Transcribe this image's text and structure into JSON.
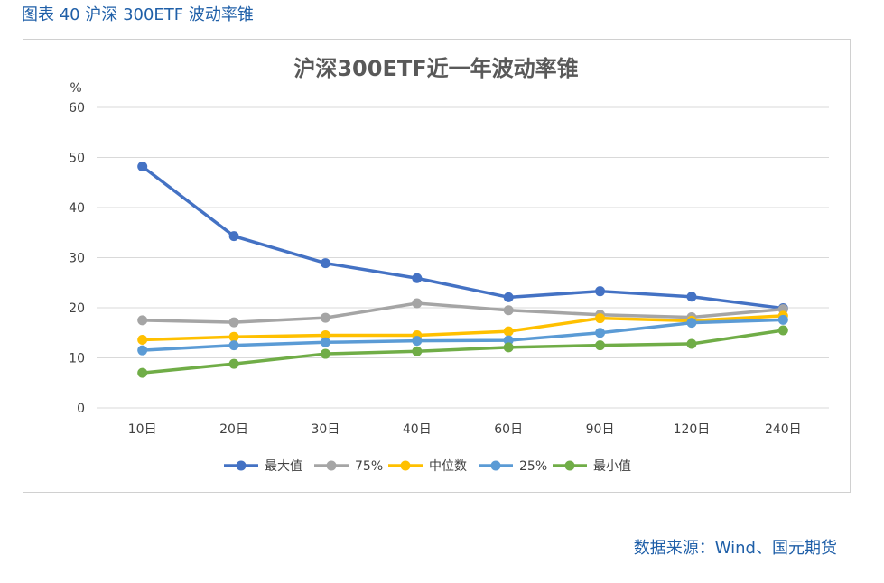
{
  "figure_title": "图表 40 沪深 300ETF 波动率锥",
  "source": "数据来源：Wind、国元期货",
  "chart_data": {
    "type": "line",
    "title": "沪深300ETF近一年波动率锥",
    "ylabel": "%",
    "xlabel": "",
    "categories": [
      "10日",
      "20日",
      "30日",
      "40日",
      "60日",
      "90日",
      "120日",
      "240日"
    ],
    "ylim": [
      0,
      60
    ],
    "yticks": [
      0,
      10,
      20,
      30,
      40,
      50,
      60
    ],
    "grid": true,
    "legend_position": "bottom",
    "series": [
      {
        "name": "最大值",
        "color": "#4472c4",
        "values": [
          48.2,
          34.3,
          28.9,
          25.9,
          22.1,
          23.3,
          22.2,
          19.9
        ]
      },
      {
        "name": "75%",
        "color": "#a5a5a5",
        "values": [
          17.5,
          17.1,
          18.0,
          20.9,
          19.5,
          18.6,
          18.1,
          19.7
        ]
      },
      {
        "name": "中位数",
        "color": "#ffc000",
        "values": [
          13.6,
          14.2,
          14.5,
          14.5,
          15.3,
          17.9,
          17.4,
          18.4
        ]
      },
      {
        "name": "25%",
        "color": "#5b9bd5",
        "values": [
          11.5,
          12.5,
          13.1,
          13.4,
          13.5,
          15.0,
          17.0,
          17.6
        ]
      },
      {
        "name": "最小值",
        "color": "#70ad47",
        "values": [
          7.0,
          8.8,
          10.8,
          11.3,
          12.1,
          12.5,
          12.8,
          15.5
        ]
      }
    ]
  }
}
